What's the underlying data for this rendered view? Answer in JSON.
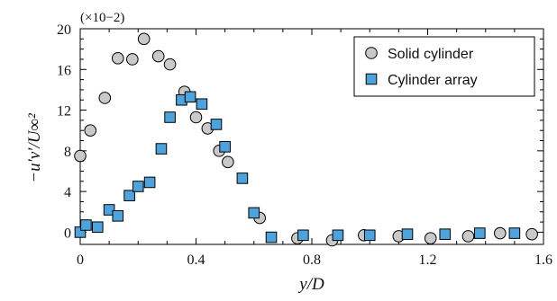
{
  "chart_data": {
    "type": "scatter",
    "xlabel": "y/D",
    "ylabel": "−u′v′/U∞²",
    "y_scale_note": "(×10−2)",
    "xlim": [
      0,
      1.6
    ],
    "ylim": [
      -1.2,
      20
    ],
    "xticks": [
      0,
      0.4,
      0.8,
      1.2,
      1.6
    ],
    "xtick_labels": [
      "0",
      "0.4",
      "0.8",
      "1.2",
      "1.6"
    ],
    "yticks": [
      0,
      4,
      8,
      12,
      16,
      20
    ],
    "ytick_labels": [
      "0",
      "4",
      "8",
      "12",
      "16",
      "20"
    ],
    "legend_position": "top-right",
    "series": [
      {
        "name": "Solid cylinder",
        "marker": "circle",
        "color": "#c9c9c9",
        "x": [
          0.0,
          0.035,
          0.085,
          0.13,
          0.18,
          0.22,
          0.27,
          0.31,
          0.36,
          0.4,
          0.44,
          0.48,
          0.51,
          0.62,
          0.75,
          0.87,
          0.98,
          1.1,
          1.21,
          1.34,
          1.45,
          1.56
        ],
        "y": [
          7.5,
          10.0,
          13.2,
          17.1,
          17.0,
          19.0,
          17.3,
          16.5,
          13.8,
          11.3,
          10.2,
          8.0,
          6.9,
          1.4,
          -0.6,
          -0.8,
          -0.3,
          -0.4,
          -0.6,
          -0.4,
          -0.1,
          -0.2
        ]
      },
      {
        "name": "Cylinder array",
        "marker": "square",
        "color": "#4fa3dc",
        "x": [
          0.0,
          0.02,
          0.06,
          0.1,
          0.13,
          0.17,
          0.2,
          0.24,
          0.28,
          0.31,
          0.35,
          0.38,
          0.42,
          0.47,
          0.5,
          0.56,
          0.6,
          0.66,
          0.77,
          0.89,
          1.0,
          1.13,
          1.26,
          1.38,
          1.5
        ],
        "y": [
          0.0,
          0.7,
          0.5,
          2.2,
          1.6,
          3.6,
          4.5,
          4.9,
          8.2,
          11.3,
          13.0,
          13.3,
          12.6,
          10.6,
          8.4,
          5.3,
          1.9,
          -0.5,
          -0.3,
          -0.3,
          -0.3,
          -0.2,
          -0.2,
          -0.1,
          -0.1
        ]
      }
    ]
  }
}
